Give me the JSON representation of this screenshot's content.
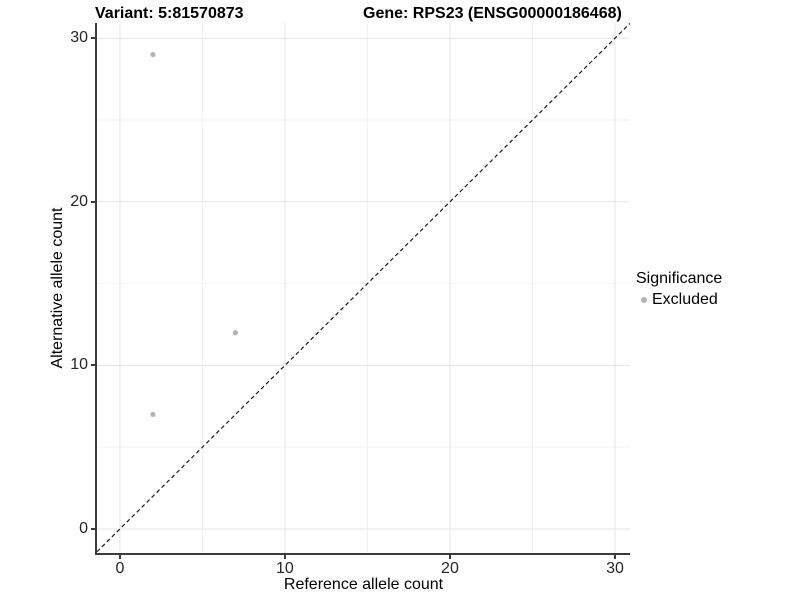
{
  "titles": {
    "variant": "Variant: 5:81570873",
    "gene": "Gene: RPS23 (ENSG00000186468)"
  },
  "chart_data": {
    "type": "scatter",
    "title_left": "Variant: 5:81570873",
    "title_right": "Gene: RPS23 (ENSG00000186468)",
    "xlabel": "Reference allele count",
    "ylabel": "Alternative allele count",
    "xlim": [
      -1.39,
      30.91
    ],
    "ylim": [
      -1.47,
      30.93
    ],
    "xticks": [
      0,
      10,
      20,
      30
    ],
    "yticks": [
      0,
      10,
      20,
      30
    ],
    "minor_xticks": [
      5,
      15,
      25
    ],
    "minor_yticks": [
      5,
      15,
      25
    ],
    "grid": true,
    "series": [
      {
        "name": "Excluded",
        "color": "#b3b3b3",
        "points": [
          [
            2,
            29
          ],
          [
            7,
            12
          ],
          [
            2,
            7
          ]
        ]
      }
    ],
    "reference_line": {
      "type": "identity",
      "style": "dashed",
      "color": "#1a1a1a"
    },
    "legend": {
      "position": "right",
      "title": "Significance",
      "entries": [
        {
          "label": "Excluded",
          "color": "#b3b3b3"
        }
      ]
    }
  },
  "colors": {
    "background": "#ffffff",
    "grid_major": "#e5e5e5",
    "grid_minor": "#f2f2f2",
    "axis_line": "#3c3c3c",
    "tick_text": "#262626",
    "point_fill": "#b3b3b3"
  }
}
